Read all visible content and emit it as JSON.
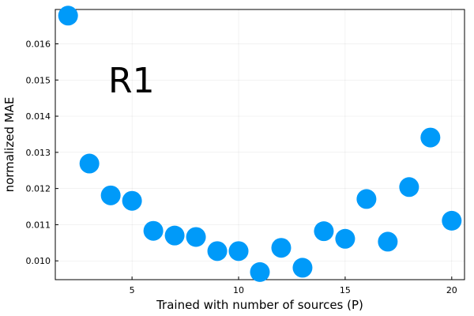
{
  "chart_data": {
    "type": "scatter",
    "title": "",
    "xlabel": "Trained with number of sources (P)",
    "ylabel": "normalized MAE",
    "xlim": [
      1.4,
      20.6
    ],
    "ylim": [
      0.00948,
      0.01695
    ],
    "xticks": [
      5,
      10,
      15,
      20
    ],
    "yticks": [
      0.01,
      0.011,
      0.012,
      0.013,
      0.014,
      0.015,
      0.016
    ],
    "xtick_labels": [
      "5",
      "10",
      "15",
      "20"
    ],
    "ytick_labels": [
      "0.010",
      "0.011",
      "0.012",
      "0.013",
      "0.014",
      "0.015",
      "0.016"
    ],
    "grid": true,
    "legend": "none",
    "annotation": "R1",
    "marker_color": "#009af9",
    "series": [
      {
        "x": [
          2,
          3,
          4,
          5,
          6,
          7,
          8,
          9,
          10,
          11,
          12,
          13,
          14,
          15,
          16,
          17,
          18,
          19,
          20
        ],
        "y": [
          0.01678,
          0.01269,
          0.01181,
          0.01166,
          0.01083,
          0.0107,
          0.01066,
          0.01027,
          0.01027,
          0.00969,
          0.01036,
          0.00981,
          0.01082,
          0.01061,
          0.01171,
          0.01053,
          0.01204,
          0.01341,
          0.01111
        ]
      }
    ]
  }
}
